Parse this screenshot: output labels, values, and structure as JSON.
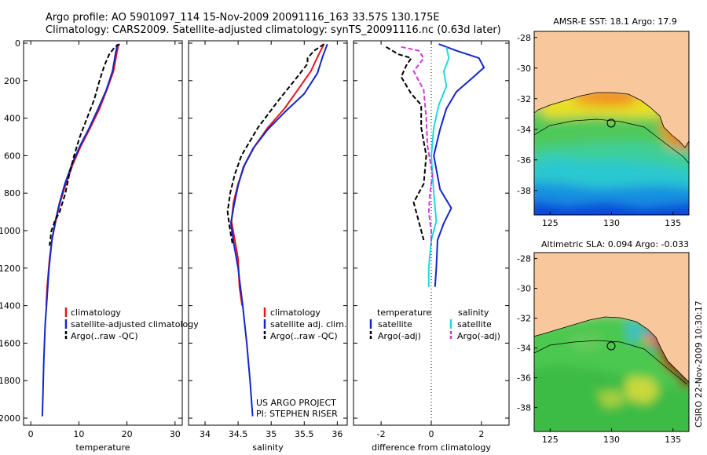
{
  "header": {
    "line1": "Argo profile: AO 5901097_114 15-Nov-2009 20091116_163 33.57S 130.175E",
    "line2": "Climatology: CARS2009. Satellite-adjusted climatology: synTS_20091116.nc (0.63d later)"
  },
  "credit": {
    "project": "US ARGO PROJECT",
    "pi": "PI: STEPHEN RISER",
    "stamp": "CSIRO 22-Nov-2009 10:30:17"
  },
  "colors": {
    "climatology": "#e8141c",
    "satellite": "#1326c8",
    "argo": "#000000",
    "sal_satellite": "#20d8e0",
    "sal_argo": "#d438d4",
    "land": "#f8c89c"
  },
  "chart_data": [
    {
      "type": "line",
      "xlabel": "temperature",
      "ylabel": "",
      "xlim": [
        -1.5,
        31.5
      ],
      "ylim": [
        2050,
        0
      ],
      "xticks": [
        0,
        10,
        20,
        30
      ],
      "yticks": [
        0,
        200,
        400,
        600,
        800,
        1000,
        1200,
        1400,
        1600,
        1800,
        2000
      ],
      "legend": [
        "climatology",
        "satellite-adjusted climatology",
        "Argo(..raw -QC)"
      ],
      "series": [
        {
          "role": "climatology",
          "points": [
            [
              18.3,
              5
            ],
            [
              17.9,
              50
            ],
            [
              17.2,
              150
            ],
            [
              15.8,
              250
            ],
            [
              14.3,
              350
            ],
            [
              12.4,
              450
            ],
            [
              10.4,
              550
            ],
            [
              8.7,
              650
            ],
            [
              7.3,
              750
            ],
            [
              6.1,
              850
            ],
            [
              5.2,
              950
            ],
            [
              4.4,
              1050
            ],
            [
              3.9,
              1150
            ],
            [
              3.4,
              1300
            ],
            [
              3.2,
              1400
            ]
          ]
        },
        {
          "role": "satellite",
          "points": [
            [
              18.0,
              5
            ],
            [
              17.6,
              60
            ],
            [
              17.0,
              150
            ],
            [
              15.7,
              250
            ],
            [
              14.0,
              350
            ],
            [
              12.2,
              450
            ],
            [
              10.2,
              550
            ],
            [
              8.5,
              650
            ],
            [
              7.1,
              750
            ],
            [
              6.0,
              850
            ],
            [
              5.1,
              950
            ],
            [
              4.4,
              1050
            ],
            [
              3.8,
              1200
            ],
            [
              3.4,
              1350
            ],
            [
              3.0,
              1500
            ],
            [
              2.7,
              1700
            ],
            [
              2.5,
              1900
            ],
            [
              2.4,
              1990
            ]
          ]
        },
        {
          "role": "argo",
          "points": [
            [
              18.5,
              5
            ],
            [
              17.5,
              20
            ],
            [
              16.3,
              60
            ],
            [
              15.3,
              120
            ],
            [
              14.3,
              200
            ],
            [
              13.2,
              300
            ],
            [
              11.7,
              400
            ],
            [
              10.2,
              500
            ],
            [
              9.0,
              600
            ],
            [
              8.0,
              700
            ],
            [
              7.2,
              800
            ],
            [
              6.0,
              900
            ],
            [
              5.0,
              950
            ],
            [
              4.3,
              1000
            ],
            [
              3.9,
              1080
            ]
          ]
        }
      ]
    },
    {
      "type": "line",
      "xlabel": "salinity",
      "ylabel": "",
      "xlim": [
        33.75,
        36.15
      ],
      "ylim": [
        2050,
        0
      ],
      "xticks": [
        34,
        34.5,
        35,
        35.5,
        36
      ],
      "legend": [
        "climatology",
        "satellite adj. clim.",
        "Argo(..raw -QC)"
      ],
      "series": [
        {
          "role": "climatology",
          "points": [
            [
              35.8,
              5
            ],
            [
              35.72,
              60
            ],
            [
              35.6,
              150
            ],
            [
              35.4,
              250
            ],
            [
              35.2,
              350
            ],
            [
              34.95,
              450
            ],
            [
              34.75,
              550
            ],
            [
              34.6,
              650
            ],
            [
              34.5,
              750
            ],
            [
              34.43,
              850
            ],
            [
              34.4,
              950
            ],
            [
              34.45,
              1050
            ],
            [
              34.5,
              1150
            ],
            [
              34.52,
              1300
            ],
            [
              34.56,
              1400
            ]
          ]
        },
        {
          "role": "satellite",
          "points": [
            [
              35.85,
              5
            ],
            [
              35.78,
              70
            ],
            [
              35.7,
              160
            ],
            [
              35.5,
              270
            ],
            [
              35.2,
              370
            ],
            [
              34.95,
              460
            ],
            [
              34.73,
              560
            ],
            [
              34.58,
              660
            ],
            [
              34.5,
              760
            ],
            [
              34.44,
              860
            ],
            [
              34.39,
              960
            ],
            [
              34.43,
              1060
            ],
            [
              34.5,
              1200
            ],
            [
              34.57,
              1400
            ],
            [
              34.63,
              1600
            ],
            [
              34.68,
              1800
            ],
            [
              34.72,
              1990
            ]
          ]
        },
        {
          "role": "argo",
          "points": [
            [
              35.8,
              5
            ],
            [
              35.65,
              40
            ],
            [
              35.55,
              80
            ],
            [
              35.55,
              110
            ],
            [
              35.35,
              200
            ],
            [
              35.1,
              310
            ],
            [
              34.8,
              450
            ],
            [
              34.55,
              600
            ],
            [
              34.45,
              700
            ],
            [
              34.38,
              800
            ],
            [
              34.34,
              900
            ],
            [
              34.38,
              1000
            ],
            [
              34.42,
              1080
            ]
          ]
        }
      ]
    },
    {
      "type": "line",
      "xlabel": "difference from climatology",
      "ylabel": "",
      "xlim": [
        -3.1,
        3.1
      ],
      "ylim": [
        2050,
        0
      ],
      "xticks": [
        -2,
        0,
        2
      ],
      "legend": [
        "temperature satellite",
        "temperature Argo(-adj)",
        "salinity satellite",
        "salinity Argo(-adj)"
      ],
      "legend_headers": [
        "temperature",
        "salinity"
      ],
      "series": [
        {
          "role": "temperature satellite",
          "points": [
            [
              0.3,
              5
            ],
            [
              1.0,
              40
            ],
            [
              1.9,
              80
            ],
            [
              2.1,
              130
            ],
            [
              1.6,
              190
            ],
            [
              1.0,
              260
            ],
            [
              0.6,
              350
            ],
            [
              0.35,
              460
            ],
            [
              0.1,
              600
            ],
            [
              0.35,
              780
            ],
            [
              0.8,
              880
            ],
            [
              0.5,
              960
            ],
            [
              0.25,
              1050
            ],
            [
              0.2,
              1200
            ],
            [
              0.15,
              1300
            ]
          ]
        },
        {
          "role": "temperature Argo(-adj)",
          "points": [
            [
              -1.8,
              20
            ],
            [
              -1.3,
              60
            ],
            [
              -0.8,
              80
            ],
            [
              -1.0,
              120
            ],
            [
              -1.2,
              180
            ],
            [
              -0.8,
              270
            ],
            [
              -0.4,
              330
            ],
            [
              -0.4,
              450
            ],
            [
              -0.2,
              600
            ],
            [
              -0.3,
              750
            ],
            [
              -0.7,
              850
            ],
            [
              -0.5,
              950
            ],
            [
              -0.3,
              1050
            ]
          ]
        },
        {
          "role": "salinity satellite",
          "points": [
            [
              0.6,
              20
            ],
            [
              0.7,
              80
            ],
            [
              0.5,
              150
            ],
            [
              0.6,
              230
            ],
            [
              0.3,
              330
            ],
            [
              0.1,
              450
            ],
            [
              0.0,
              600
            ],
            [
              0.1,
              800
            ],
            [
              0.2,
              950
            ],
            [
              0.0,
              1050
            ],
            [
              -0.1,
              1200
            ],
            [
              -0.1,
              1300
            ]
          ]
        },
        {
          "role": "salinity Argo(-adj)",
          "points": [
            [
              -1.2,
              20
            ],
            [
              -0.5,
              40
            ],
            [
              -0.3,
              80
            ],
            [
              -0.7,
              150
            ],
            [
              -0.3,
              250
            ],
            [
              -0.2,
              400
            ],
            [
              -0.15,
              550
            ],
            [
              0.05,
              700
            ],
            [
              -0.05,
              800
            ],
            [
              -0.1,
              900
            ],
            [
              0.0,
              1000
            ],
            [
              0.0,
              1080
            ]
          ]
        }
      ]
    },
    {
      "type": "heatmap",
      "title": "AMSR-E SST: 18.1  Argo: 17.9",
      "xlim": [
        123.7,
        136.3
      ],
      "ylim": [
        -39.6,
        -27.6
      ],
      "xticks": [
        125,
        130,
        135
      ],
      "yticks": [
        -28,
        -30,
        -32,
        -34,
        -36,
        -38
      ],
      "argo_position": [
        130.175,
        -33.57
      ]
    },
    {
      "type": "heatmap",
      "title": "Altimetric SLA: 0.094  Argo: -0.033",
      "xlim": [
        123.7,
        136.3
      ],
      "ylim": [
        -39.6,
        -27.6
      ],
      "xticks": [
        125,
        130,
        135
      ],
      "yticks": [
        -28,
        -30,
        -32,
        -34,
        -36,
        -38
      ],
      "argo_position": [
        130.175,
        -33.57
      ]
    }
  ]
}
